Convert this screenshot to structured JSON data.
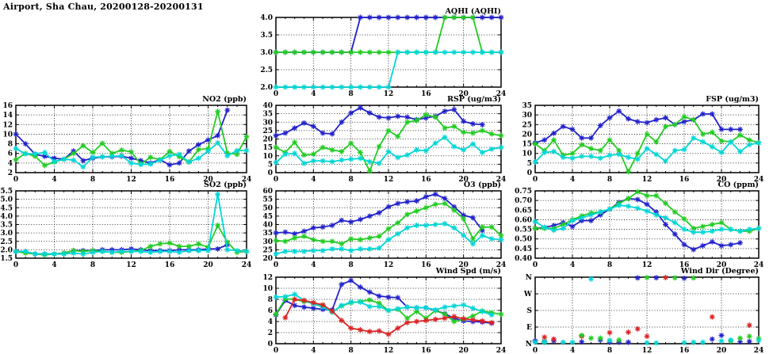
{
  "page": {
    "title": "Airport, Sha Chau, 20200128-20200131"
  },
  "palette": {
    "blue": "#2222cc",
    "green": "#22cc22",
    "cyan": "#00d6d6",
    "red": "#dd2222"
  },
  "chart_data": [
    {
      "id": "aqhi",
      "type": "line",
      "title": "AQHI (AQHI)",
      "xlim": [
        0,
        24
      ],
      "xticks": [
        0,
        4,
        8,
        12,
        16,
        20,
        24
      ],
      "ylim": [
        2.0,
        4.0
      ],
      "yticks": [
        "2.0",
        "2.5",
        "3.0",
        "3.5",
        "4.0"
      ],
      "series": [
        {
          "color": "blue",
          "values": [
            3,
            3,
            3,
            3,
            3,
            3,
            3,
            3,
            3,
            4,
            4,
            4,
            4,
            4,
            4,
            4,
            4,
            4,
            4,
            4,
            4,
            4,
            4,
            4,
            4
          ]
        },
        {
          "color": "green",
          "values": [
            3,
            3,
            3,
            3,
            3,
            3,
            3,
            3,
            3,
            3,
            3,
            3,
            3,
            3,
            3,
            3,
            3,
            3,
            4,
            4,
            4,
            4,
            3,
            3,
            3
          ]
        },
        {
          "color": "cyan",
          "values": [
            2,
            2,
            2,
            2,
            2,
            2,
            2,
            2,
            2,
            2,
            2,
            2,
            2,
            3,
            3,
            3,
            3,
            3,
            3,
            3,
            3,
            3,
            3,
            3,
            3
          ]
        }
      ]
    },
    {
      "id": "no2",
      "type": "line",
      "title": "NO2 (ppb)",
      "xlim": [
        0,
        24
      ],
      "xticks": [
        0,
        4,
        8,
        12,
        16,
        20,
        24
      ],
      "ylim": [
        2,
        16
      ],
      "yticks": [
        "2",
        "4",
        "6",
        "8",
        "10",
        "12",
        "14",
        "16"
      ],
      "series": [
        {
          "color": "blue",
          "values": [
            10,
            8,
            5.8,
            5.4,
            5,
            4.8,
            6.5,
            4.5,
            5,
            5.3,
            5.3,
            5.4,
            5,
            4.5,
            4,
            4.7,
            3.6,
            4,
            6.5,
            7.8,
            8.8,
            9.7,
            15,
            null,
            null
          ]
        },
        {
          "color": "green",
          "values": [
            4.7,
            6,
            5.4,
            3.5,
            4.2,
            4.8,
            6,
            7.6,
            6.2,
            8.1,
            6,
            6.7,
            6.3,
            3.8,
            5.2,
            4.7,
            6.4,
            5.3,
            4.2,
            6.8,
            7,
            14.7,
            6.1,
            5.8,
            9.5
          ]
        },
        {
          "color": "cyan",
          "values": [
            7,
            5.9,
            5.9,
            6.2,
            4.3,
            4.8,
            4.6,
            3.2,
            5.2,
            5.3,
            5.4,
            5.5,
            4,
            3.7,
            3.8,
            4.6,
            5.5,
            5.8,
            4.2,
            5,
            6.5,
            8.2,
            5.5,
            6.6,
            6.6
          ]
        }
      ]
    },
    {
      "id": "rsp",
      "type": "line",
      "title": "RSP (ug/m3)",
      "xlim": [
        0,
        24
      ],
      "xticks": [
        0,
        4,
        8,
        12,
        16,
        20,
        24
      ],
      "ylim": [
        0,
        40
      ],
      "yticks": [
        "0",
        "5",
        "10",
        "15",
        "20",
        "25",
        "30",
        "35",
        "40"
      ],
      "series": [
        {
          "color": "blue",
          "values": [
            22,
            23.5,
            26.5,
            29.5,
            27.5,
            23.5,
            23,
            30,
            35.5,
            38.5,
            35.5,
            33,
            32.5,
            33.5,
            33,
            31.5,
            32.5,
            33.5,
            36.5,
            37.5,
            30.5,
            29,
            28.5,
            null,
            null
          ]
        },
        {
          "color": "green",
          "values": [
            15,
            12,
            18,
            10.5,
            11,
            15,
            13.5,
            12.5,
            17.5,
            12,
            1,
            15.5,
            25,
            21.5,
            30,
            31,
            34.5,
            33,
            26.5,
            27.5,
            24,
            23.5,
            25,
            23,
            22
          ]
        },
        {
          "color": "cyan",
          "values": [
            6,
            11,
            11.5,
            5.5,
            7,
            7,
            6.5,
            7.5,
            8,
            8.5,
            6.5,
            5.5,
            12.5,
            9,
            10.5,
            13.5,
            13,
            17.5,
            21,
            15.5,
            13.5,
            17,
            12,
            14,
            15
          ]
        }
      ]
    },
    {
      "id": "fsp",
      "type": "line",
      "title": "FSP (ug/m3)",
      "xlim": [
        0,
        24
      ],
      "xticks": [
        0,
        4,
        8,
        12,
        16,
        20,
        24
      ],
      "ylim": [
        0,
        35
      ],
      "yticks": [
        "0",
        "5",
        "10",
        "15",
        "20",
        "25",
        "30",
        "35"
      ],
      "series": [
        {
          "color": "blue",
          "values": [
            15.5,
            17,
            20.5,
            24,
            22.5,
            18,
            18,
            24.5,
            28.5,
            32,
            28,
            26.5,
            26,
            27.5,
            28.5,
            25,
            26.5,
            27.5,
            30.5,
            30.5,
            22.5,
            22.5,
            22.5,
            null,
            null
          ]
        },
        {
          "color": "green",
          "values": [
            15,
            11.5,
            17,
            9,
            10,
            14.5,
            12.5,
            11.5,
            17,
            11.5,
            0.5,
            10,
            20,
            16,
            24,
            25,
            29,
            27.5,
            20,
            21,
            16.5,
            16,
            19.5,
            17,
            15.5
          ]
        },
        {
          "color": "cyan",
          "values": [
            5.5,
            10.5,
            11,
            8,
            7.5,
            8.5,
            8.5,
            7.5,
            9,
            9.5,
            8,
            7,
            12.5,
            9.5,
            6,
            11.5,
            12,
            18,
            16,
            13.5,
            10.5,
            16,
            11,
            14.5,
            15.5
          ]
        }
      ]
    },
    {
      "id": "so2",
      "type": "line",
      "title": "SO2 (ppb)",
      "xlim": [
        0,
        24
      ],
      "xticks": [
        0,
        4,
        8,
        12,
        16,
        20,
        24
      ],
      "ylim": [
        1.5,
        5.5
      ],
      "yticks": [
        "1.5",
        "2.0",
        "2.5",
        "3.0",
        "3.5",
        "4.0",
        "4.5",
        "5.0",
        "5.5"
      ],
      "series": [
        {
          "color": "blue",
          "values": [
            1.9,
            1.9,
            1.75,
            1.75,
            1.75,
            1.8,
            1.95,
            1.95,
            1.95,
            2,
            2,
            2,
            2.05,
            2,
            1.95,
            1.95,
            1.95,
            2,
            2,
            2,
            2.05,
            2.05,
            2.3,
            null,
            null
          ]
        },
        {
          "color": "green",
          "values": [
            1.9,
            1.8,
            1.75,
            1.7,
            1.75,
            1.8,
            1.95,
            1.9,
            1.95,
            1.9,
            1.85,
            1.85,
            1.9,
            1.95,
            2.2,
            2.35,
            2.4,
            2.2,
            2.2,
            2.35,
            2.15,
            3.45,
            2.45,
            1.85,
            1.9
          ]
        },
        {
          "color": "cyan",
          "values": [
            1.9,
            1.9,
            1.75,
            1.75,
            1.75,
            1.75,
            1.8,
            1.75,
            1.85,
            1.9,
            1.85,
            1.9,
            1.9,
            1.9,
            1.85,
            1.9,
            1.9,
            1.85,
            1.95,
            1.95,
            1.95,
            5.3,
            2,
            1.95,
            1.9
          ]
        }
      ]
    },
    {
      "id": "o3",
      "type": "line",
      "title": "O3 (ppb)",
      "xlim": [
        0,
        24
      ],
      "xticks": [
        0,
        4,
        8,
        12,
        16,
        20,
        24
      ],
      "ylim": [
        20,
        60
      ],
      "yticks": [
        "20",
        "25",
        "30",
        "35",
        "40",
        "45",
        "50",
        "55",
        "60"
      ],
      "series": [
        {
          "color": "blue",
          "values": [
            35,
            35.5,
            34.5,
            36,
            38,
            38.5,
            39.5,
            42.5,
            41.5,
            43,
            45,
            47,
            50.5,
            52.5,
            53.5,
            54,
            56.5,
            58,
            55.5,
            50.5,
            45.5,
            44,
            36.5,
            null,
            null
          ]
        },
        {
          "color": "green",
          "values": [
            30.5,
            30,
            32,
            33,
            31,
            30,
            30,
            28.5,
            31.5,
            31,
            32,
            33,
            37.5,
            41,
            46,
            48,
            50,
            52,
            52.5,
            48.5,
            43.5,
            31.5,
            38.5,
            38.5,
            33.5
          ]
        },
        {
          "color": "cyan",
          "values": [
            22.5,
            24,
            24,
            24,
            24.5,
            24.5,
            25.5,
            25.5,
            24.5,
            25.5,
            25.5,
            26,
            31,
            34.5,
            38,
            39.5,
            39.5,
            40,
            40.5,
            38,
            33.5,
            28.5,
            33.5,
            31.5,
            31
          ]
        }
      ]
    },
    {
      "id": "co",
      "type": "line",
      "title": "CO (ppm)",
      "xlim": [
        0,
        24
      ],
      "xticks": [
        0,
        4,
        8,
        12,
        16,
        20,
        24
      ],
      "ylim": [
        0.4,
        0.75
      ],
      "yticks": [
        "0.40",
        "0.45",
        "0.50",
        "0.55",
        "0.60",
        "0.65",
        "0.70",
        "0.75"
      ],
      "series": [
        {
          "color": "blue",
          "values": [
            0.555,
            0.56,
            0.57,
            0.585,
            0.565,
            0.595,
            0.595,
            0.625,
            0.655,
            0.69,
            0.71,
            0.705,
            0.68,
            0.64,
            0.575,
            0.525,
            0.47,
            0.445,
            0.465,
            0.485,
            0.465,
            0.47,
            0.48,
            null,
            null
          ]
        },
        {
          "color": "green",
          "values": [
            0.555,
            0.555,
            0.555,
            0.575,
            0.6,
            0.62,
            0.635,
            0.64,
            0.655,
            0.685,
            0.71,
            0.745,
            0.725,
            0.725,
            0.685,
            0.64,
            0.605,
            0.555,
            0.565,
            0.575,
            0.585,
            0.55,
            0.54,
            0.54,
            0.555
          ]
        },
        {
          "color": "cyan",
          "values": [
            0.59,
            0.56,
            0.545,
            0.555,
            0.595,
            0.61,
            0.625,
            0.64,
            0.655,
            0.675,
            0.67,
            0.66,
            0.645,
            0.625,
            0.61,
            0.585,
            0.55,
            0.535,
            0.535,
            0.54,
            0.55,
            0.55,
            0.54,
            0.55,
            0.555
          ]
        }
      ]
    },
    {
      "id": "wspd",
      "type": "line",
      "title": "Wind Spd (m/s)",
      "xlim": [
        0,
        24
      ],
      "xticks": [
        0,
        4,
        8,
        12,
        16,
        20,
        24
      ],
      "ylim": [
        0,
        12
      ],
      "yticks": [
        "0",
        "2",
        "4",
        "6",
        "8",
        "10",
        "12"
      ],
      "series": [
        {
          "color": "blue",
          "values": [
            5.2,
            7.8,
            6.9,
            6.6,
            6.4,
            6.2,
            6.1,
            10.7,
            11.4,
            10.2,
            9.3,
            8.6,
            8.4,
            8.3,
            6.6,
            6.5,
            6.5,
            6,
            5.4,
            4.6,
            4.1,
            4,
            3.9,
            3.7,
            null
          ]
        },
        {
          "color": "green",
          "values": [
            5.3,
            8.1,
            8,
            7.6,
            7.3,
            6.9,
            5.7,
            6.8,
            7.4,
            7.6,
            7.9,
            7.3,
            6,
            6.2,
            4.6,
            5.8,
            4.6,
            6,
            5.3,
            4,
            4.4,
            5,
            5.9,
            5.6,
            5.3
          ]
        },
        {
          "color": "cyan",
          "values": [
            8.4,
            8.5,
            8.9,
            7.8,
            7.2,
            6.6,
            5.7,
            6.9,
            7.5,
            7.5,
            6.7,
            6.7,
            6,
            6.3,
            6.6,
            6.5,
            6.5,
            6.1,
            6.6,
            6.8,
            7,
            6.4,
            5.8,
            5.2,
            null
          ]
        },
        {
          "color": "red",
          "values": [
            null,
            4.7,
            8,
            7.8,
            7.4,
            7,
            5.9,
            4.2,
            2.8,
            2.5,
            2.2,
            2.3,
            1.7,
            2.8,
            3.8,
            4,
            4.2,
            4.4,
            4.6,
            4.9,
            4.5,
            4.3,
            4.1,
            3.8,
            null
          ]
        }
      ]
    },
    {
      "id": "wdir",
      "type": "scatter",
      "title": "Wind Dir (Degree)",
      "xlim": [
        0,
        24
      ],
      "xticks": [
        0,
        4,
        8,
        12,
        16,
        20,
        24
      ],
      "ylim": [
        0,
        360
      ],
      "yticks": [
        "N",
        "E",
        "S",
        "W",
        "N"
      ],
      "ytick_values": [
        0,
        90,
        180,
        270,
        360
      ],
      "series": [
        {
          "color": "blue",
          "values": [
            15,
            12,
            15,
            null,
            null,
            10,
            null,
            20,
            8,
            8,
            8,
            356,
            null,
            357,
            null,
            null,
            354,
            null,
            null,
            25,
            45,
            null,
            10,
            12,
            null
          ]
        },
        {
          "color": "red",
          "values": [
            null,
            35,
            25,
            null,
            null,
            40,
            null,
            null,
            60,
            null,
            62,
            80,
            40,
            null,
            358,
            null,
            null,
            null,
            null,
            145,
            null,
            null,
            null,
            100,
            null
          ]
        },
        {
          "color": "green",
          "values": [
            null,
            10,
            null,
            null,
            null,
            45,
            30,
            30,
            18,
            20,
            null,
            null,
            358,
            null,
            null,
            357,
            null,
            356,
            null,
            null,
            null,
            15,
            30,
            40,
            28
          ]
        },
        {
          "color": "cyan",
          "values": [
            8,
            8,
            null,
            8,
            8,
            null,
            350,
            null,
            18,
            null,
            null,
            null,
            5,
            4,
            null,
            null,
            6,
            8,
            8,
            null,
            15,
            20,
            null,
            null,
            18
          ]
        }
      ]
    }
  ]
}
